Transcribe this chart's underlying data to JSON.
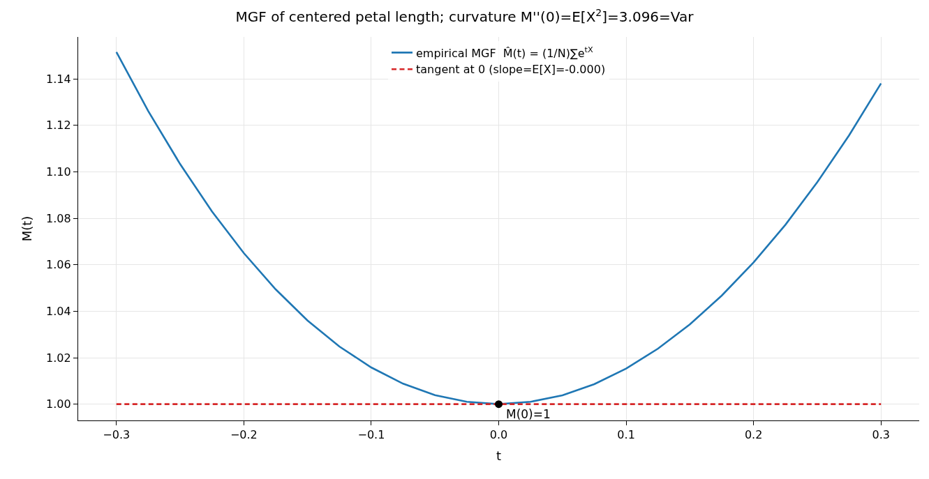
{
  "chart_data": {
    "type": "line",
    "title": "MGF of centered petal length; curvature M''(0)=E[X$^{2}$]=3.096=Var",
    "xlabel": "t",
    "ylabel": "M(t)",
    "x": [
      -0.3,
      -0.275,
      -0.25,
      -0.225,
      -0.2,
      -0.175,
      -0.15,
      -0.125,
      -0.1,
      -0.075,
      -0.05,
      -0.025,
      0,
      0.025,
      0.05,
      0.075,
      0.1,
      0.125,
      0.15,
      0.175,
      0.2,
      0.225,
      0.25,
      0.275,
      0.3
    ],
    "series": [
      {
        "name": "empirical MGF  M̂(t) = (1/N)∑e$^{tX}$",
        "color": "#1f77b4",
        "line_style": "solid",
        "marker": "none",
        "values": [
          1.1515,
          1.1261,
          1.1033,
          1.0829,
          1.065,
          1.0494,
          1.036,
          1.0248,
          1.0158,
          1.0088,
          1.0039,
          1.001,
          1.0,
          1.001,
          1.0038,
          1.0086,
          1.0153,
          1.0239,
          1.0343,
          1.0467,
          1.061,
          1.0772,
          1.0955,
          1.1157,
          1.138
        ]
      },
      {
        "name": "tangent at 0 (slope=E[X]=-0.000)",
        "color": "#d62728",
        "line_style": "dashed",
        "marker": "none",
        "x": [
          -0.3,
          0.3
        ],
        "values": [
          1.0,
          1.0
        ]
      },
      {
        "type": "scatter",
        "color": "#000000",
        "marker": "circle",
        "x": [
          0
        ],
        "values": [
          1.0
        ]
      }
    ],
    "annotations": [
      {
        "text": "M(0)=1",
        "x": 0,
        "y": 1.0
      }
    ],
    "xlim": [
      -0.33,
      0.33
    ],
    "xticks": [
      {
        "value": -0.3,
        "label": "−0.3"
      },
      {
        "value": -0.2,
        "label": "−0.2"
      },
      {
        "value": -0.1,
        "label": "−0.1"
      },
      {
        "value": 0.0,
        "label": "0.0"
      },
      0.1,
      0.2,
      0.3
    ],
    "ylim": [
      0.993,
      1.158
    ],
    "yticks": [
      {
        "value": 1.0,
        "label": "1.00"
      },
      1.02,
      1.04,
      1.06,
      1.08,
      {
        "value": 1.1,
        "label": "1.10"
      },
      1.12,
      1.14
    ],
    "grid": true,
    "legend": "top"
  }
}
